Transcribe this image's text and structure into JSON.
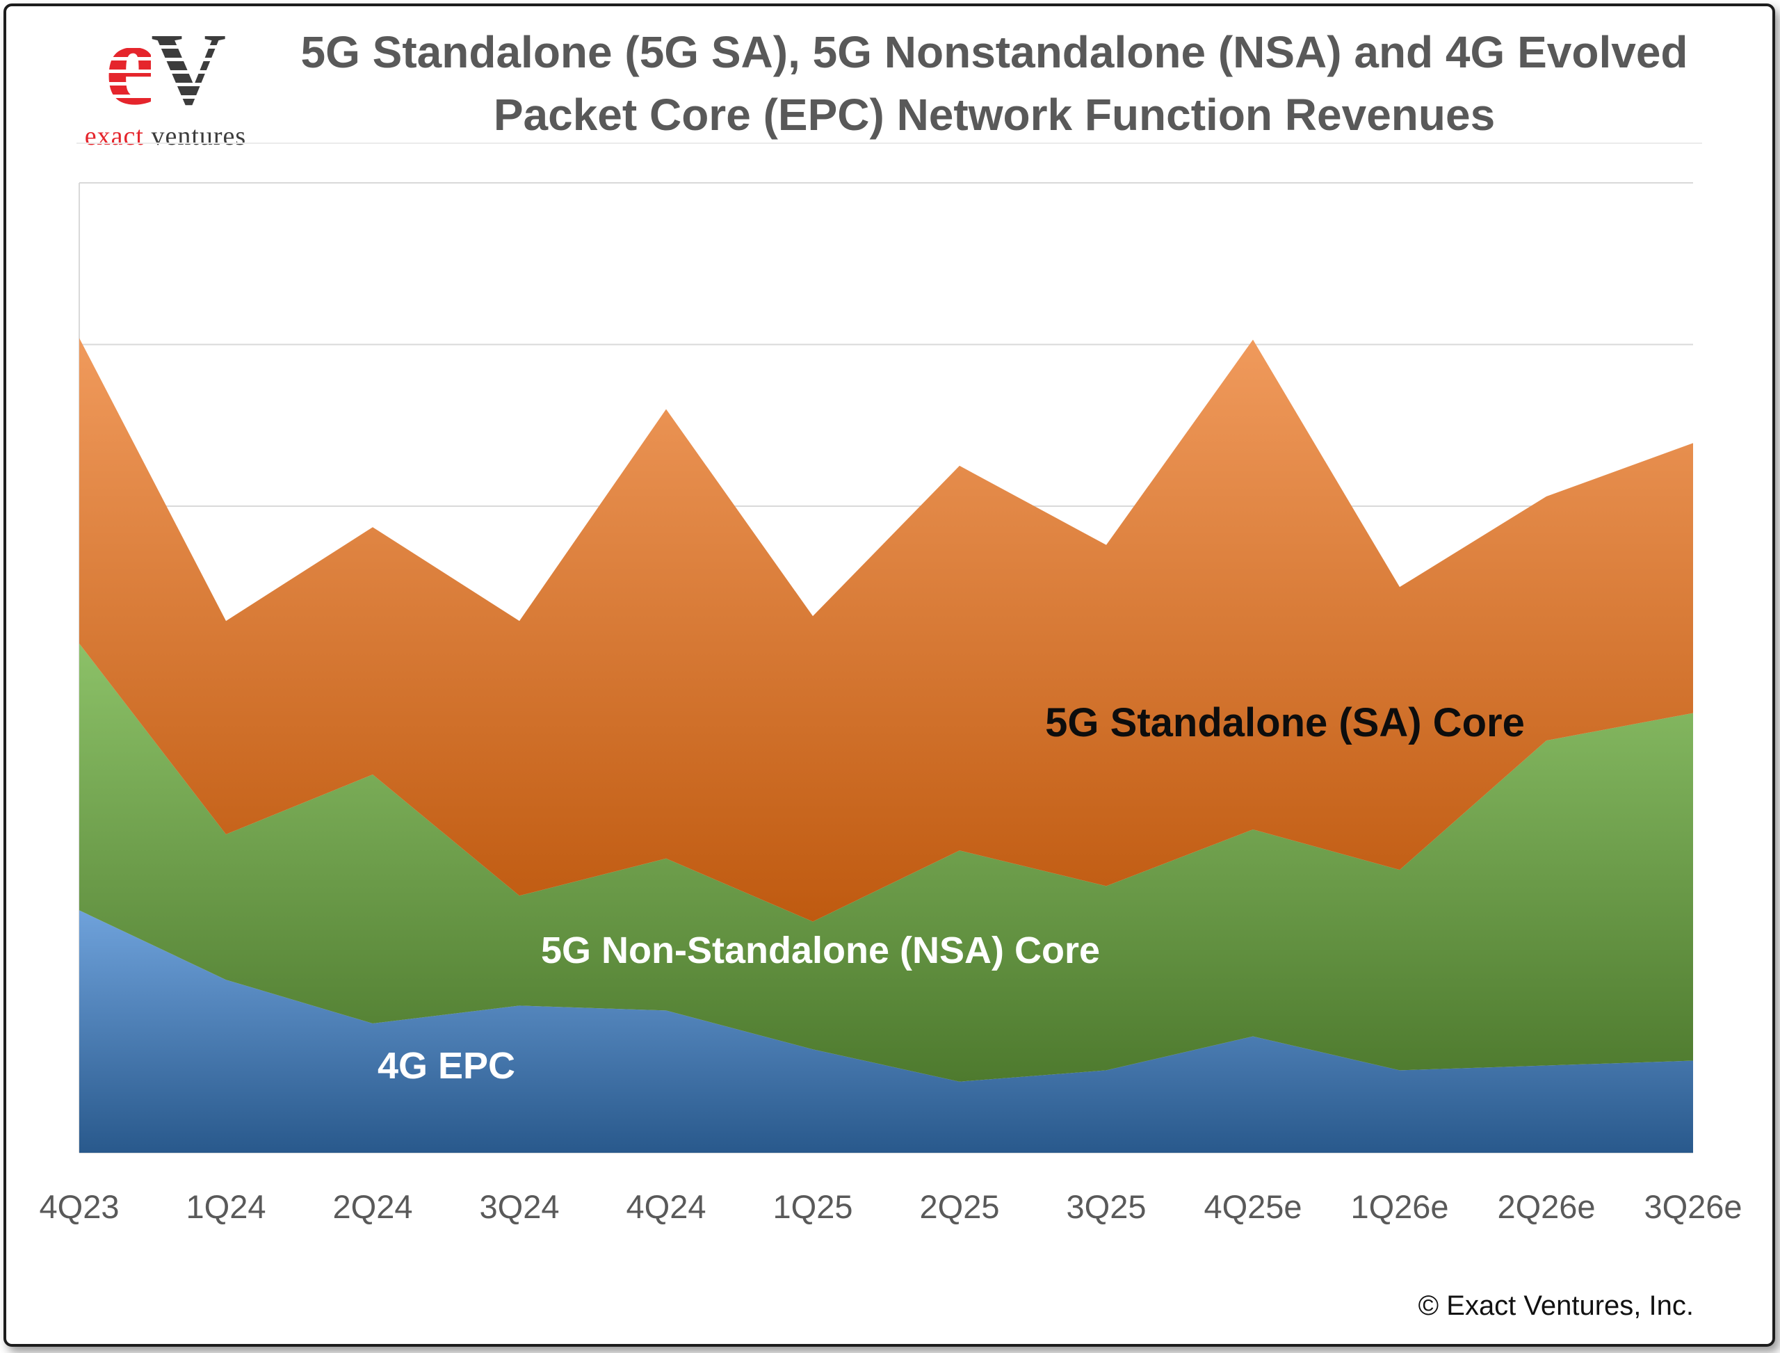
{
  "logo": {
    "e": "e",
    "v": "V",
    "exact": "exact",
    "ventures": "ventures"
  },
  "title": {
    "line1": "5G Standalone (5G SA), 5G Nonstandalone (NSA) and 4G Evolved",
    "line2": "Packet Core (EPC) Network Function Revenues"
  },
  "footer": {
    "copyright": "© Exact Ventures, Inc."
  },
  "chart_data": {
    "type": "area",
    "stacked": true,
    "title": "5G Standalone (5G SA), 5G Nonstandalone (NSA) and 4G Evolved Packet Core (EPC) Network Function Revenues",
    "categories": [
      "4Q23",
      "1Q24",
      "2Q24",
      "3Q24",
      "4Q24",
      "1Q25",
      "2Q25",
      "3Q25",
      "4Q25e",
      "1Q26e",
      "2Q26e",
      "3Q26e"
    ],
    "series": [
      {
        "name": "4G EPC",
        "label_text_color": "#FFFFFF",
        "fill_top": "#6FA2DB",
        "fill_bottom": "#29598C",
        "values": [
          150,
          107,
          80,
          91,
          88,
          64,
          44,
          51,
          72,
          51,
          54,
          57
        ]
      },
      {
        "name": "5G Non-Standalone (NSA) Core",
        "label_text_color": "#FFFFFF",
        "fill_top": "#8CC168",
        "fill_bottom": "#4E7A2E",
        "values": [
          165,
          90,
          154,
          68,
          94,
          79,
          143,
          114,
          128,
          124,
          201,
          215
        ]
      },
      {
        "name": "5G Standalone (SA) Core",
        "label_text_color": "#0D0D0D",
        "fill_top": "#F09A5C",
        "fill_bottom": "#BF5A10",
        "values": [
          189,
          132,
          153,
          170,
          278,
          189,
          238,
          211,
          303,
          175,
          151,
          167
        ]
      }
    ],
    "xlabel": "",
    "ylabel": "",
    "ylim": [
      0,
      600
    ],
    "gridline_step": 100,
    "grid": "horizontal",
    "gridline_color": "#D9D9D9",
    "legend": "inline-area-labels",
    "y_tick_labels_shown": false
  }
}
